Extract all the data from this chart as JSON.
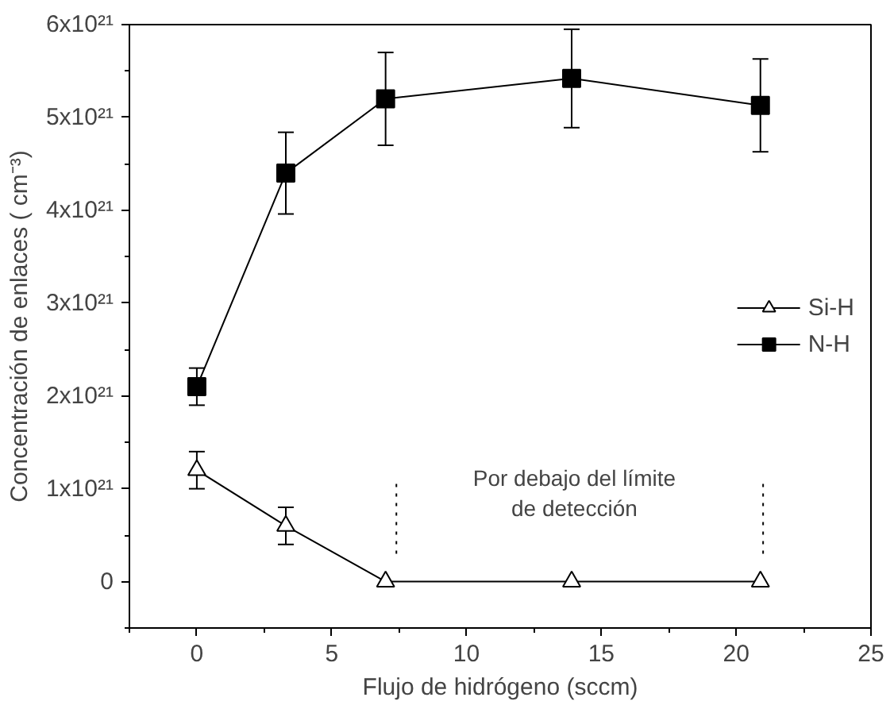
{
  "chart_data": {
    "type": "line",
    "xlabel": "Flujo de hidrógeno (sccm)",
    "ylabel": "Concentración de enlaces ( cm⁻³)",
    "xlim": [
      -2.5,
      25
    ],
    "xticks": [
      0,
      5,
      10,
      15,
      20,
      25
    ],
    "ylim": [
      -5e+20,
      6e+21
    ],
    "yticks": [
      {
        "value": 0,
        "label": "0"
      },
      {
        "value": 1e+21,
        "label": "1x10²¹"
      },
      {
        "value": 2e+21,
        "label": "2x10²¹"
      },
      {
        "value": 3e+21,
        "label": "3x10²¹"
      },
      {
        "value": 4e+21,
        "label": "4x10²¹"
      },
      {
        "value": 5e+21,
        "label": "5x10²¹"
      },
      {
        "value": 6e+21,
        "label": "6x10²¹"
      }
    ],
    "grid": false,
    "legend": "right",
    "series": [
      {
        "name": "Si-H",
        "color": "#000000",
        "marker": "triangle",
        "x": [
          0,
          3.3,
          7,
          13.9,
          20.9
        ],
        "values": [
          1.2e+21,
          6e+20,
          0,
          0,
          0
        ],
        "errors": [
          2e+20,
          2e+20,
          null,
          null,
          null
        ]
      },
      {
        "name": "N-H",
        "color": "#000000",
        "marker": "square",
        "x": [
          0,
          3.3,
          7,
          13.9,
          20.9
        ],
        "values": [
          2.1e+21,
          4.4e+21,
          5.2e+21,
          5.42e+21,
          5.13e+21
        ],
        "errors": [
          2e+20,
          4.4e+20,
          5e+20,
          5.3e+20,
          5e+20
        ]
      }
    ],
    "ref_lines": [
      {
        "axis": "x",
        "value": 7.4,
        "label": null,
        "line_style": "dotted",
        "color": "#000000"
      },
      {
        "axis": "x",
        "value": 21,
        "label": null,
        "line_style": "dotted",
        "color": "#000000"
      }
    ],
    "annotations": [
      "Por debajo del límite\nde detección"
    ]
  }
}
